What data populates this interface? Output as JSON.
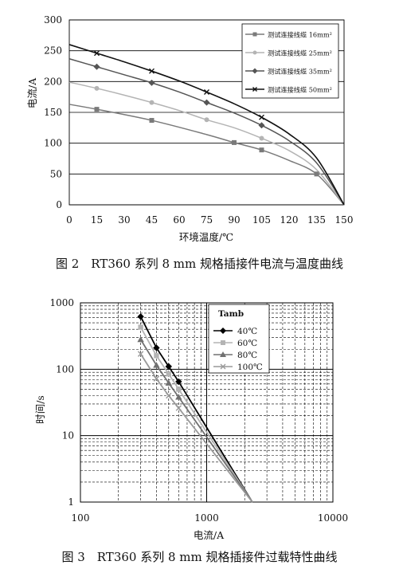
{
  "chart_data": [
    {
      "type": "line",
      "title": "",
      "xlabel": "环境温度/℃",
      "ylabel": "电流/A",
      "xlim": [
        0,
        150
      ],
      "ylim": [
        0,
        300
      ],
      "xticks": [
        0,
        15,
        30,
        45,
        60,
        75,
        90,
        105,
        120,
        135,
        150
      ],
      "yticks": [
        0,
        50,
        100,
        150,
        200,
        250,
        300
      ],
      "grid": true,
      "legend_placement": "top-right",
      "caption": "图 2　RT360 系列 8 mm 规格插接件电流与温度曲线",
      "series": [
        {
          "name": "测试连接线缆 16mm²",
          "marker": "square",
          "color": "#7a7a7a",
          "x": [
            0,
            15,
            45,
            75,
            90,
            105,
            120,
            135,
            150
          ],
          "y": [
            163,
            155,
            137,
            114,
            101,
            89,
            72,
            50,
            0
          ],
          "marked": [
            false,
            true,
            true,
            false,
            true,
            true,
            false,
            true,
            false
          ]
        },
        {
          "name": "测试连接线缆 25mm²",
          "marker": "circle",
          "color": "#b4b4b4",
          "x": [
            0,
            15,
            30,
            45,
            60,
            75,
            90,
            105,
            120,
            135,
            150
          ],
          "y": [
            199,
            189,
            178,
            166,
            153,
            138,
            125,
            108,
            88,
            57,
            0
          ],
          "marked": [
            false,
            true,
            false,
            true,
            false,
            true,
            false,
            true,
            false,
            false,
            false
          ]
        },
        {
          "name": "测试连接线缆 35mm²",
          "marker": "diamond",
          "color": "#555555",
          "x": [
            0,
            15,
            30,
            45,
            60,
            75,
            90,
            105,
            120,
            135,
            150
          ],
          "y": [
            237,
            224,
            211,
            198,
            183,
            166,
            149,
            129,
            104,
            68,
            0
          ],
          "marked": [
            false,
            true,
            false,
            true,
            false,
            true,
            false,
            true,
            false,
            false,
            false
          ]
        },
        {
          "name": "测试连接线缆 50mm²",
          "marker": "x",
          "color": "#111111",
          "x": [
            0,
            15,
            30,
            45,
            60,
            75,
            90,
            105,
            120,
            135,
            150
          ],
          "y": [
            260,
            246,
            232,
            217,
            201,
            183,
            164,
            142,
            115,
            76,
            0
          ],
          "marked": [
            false,
            true,
            false,
            true,
            false,
            true,
            false,
            true,
            false,
            false,
            false
          ]
        }
      ]
    },
    {
      "type": "line",
      "title": "",
      "xlabel": "电流/A",
      "ylabel": "时间/s",
      "xscale": "log",
      "yscale": "log",
      "xlim": [
        100,
        10000
      ],
      "ylim": [
        1,
        1000
      ],
      "xticks": [
        100,
        1000,
        10000
      ],
      "yticks": [
        1,
        10,
        100,
        1000
      ],
      "grid": true,
      "legend_title": "Tamb",
      "legend_placement": "top-right",
      "caption": "图 3　RT360 系列 8 mm 规格插接件过载特性曲线",
      "series": [
        {
          "name": "40℃",
          "marker": "diamond",
          "color": "#000000",
          "x": [
            300,
            400,
            500,
            600,
            2300
          ],
          "y": [
            620,
            210,
            110,
            65,
            1
          ]
        },
        {
          "name": "60℃",
          "marker": "square",
          "color": "#b4b4b4",
          "x": [
            300,
            400,
            500,
            600,
            2300
          ],
          "y": [
            430,
            160,
            85,
            50,
            1
          ]
        },
        {
          "name": "80℃",
          "marker": "triangle",
          "color": "#707070",
          "x": [
            300,
            400,
            500,
            600,
            2300
          ],
          "y": [
            280,
            115,
            62,
            38,
            1
          ]
        },
        {
          "name": "100℃",
          "marker": "x",
          "color": "#999999",
          "x": [
            300,
            400,
            500,
            600,
            2300
          ],
          "y": [
            170,
            72,
            40,
            26,
            1
          ]
        }
      ]
    }
  ]
}
